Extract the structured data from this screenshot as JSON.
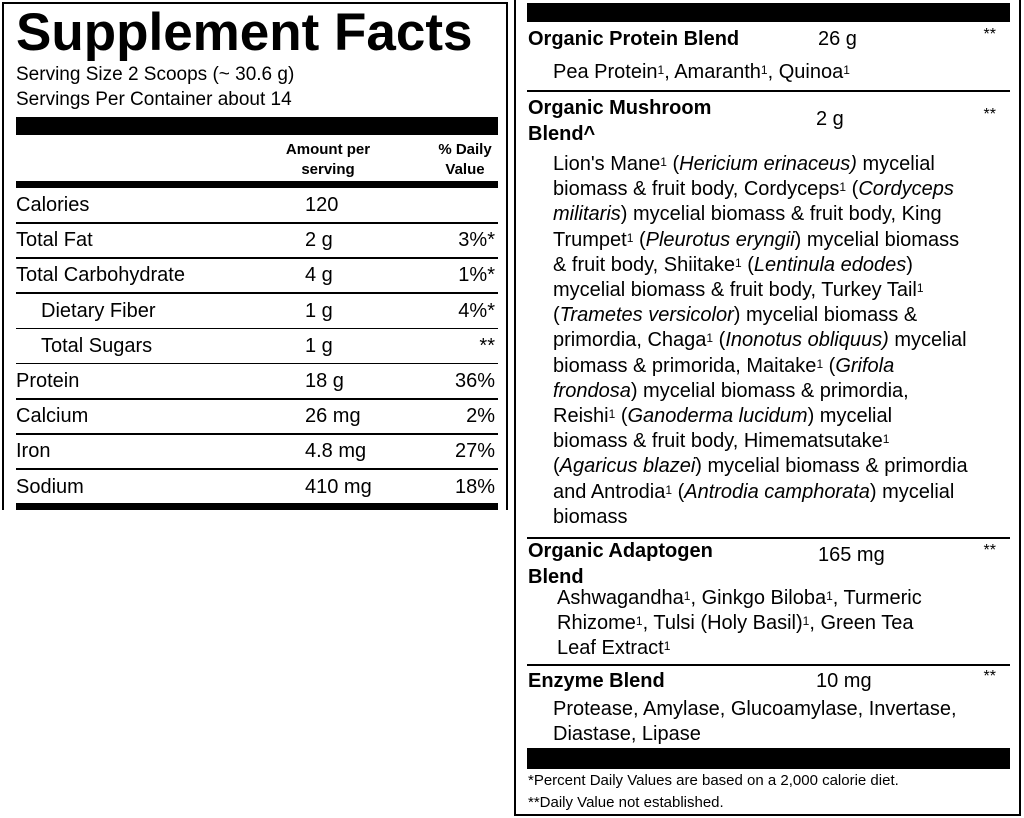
{
  "title": "Supplement Facts",
  "serving_size": "Serving Size 2 Scoops (~ 30.6 g)",
  "servings_per_container": "Servings Per Container about 14",
  "header": {
    "amount_line1": "Amount per",
    "amount_line2": "serving",
    "dv_line1": "% Daily",
    "dv_line2": "Value"
  },
  "nutrients": [
    {
      "name": "Calories",
      "amount": "120",
      "dv": "",
      "indent": false
    },
    {
      "name": "Total Fat",
      "amount": "2 g",
      "dv": "3%*",
      "indent": false
    },
    {
      "name": "Total Carbohydrate",
      "amount": "4 g",
      "dv": "1%*",
      "indent": false
    },
    {
      "name": "Dietary Fiber",
      "amount": "1 g",
      "dv": "4%*",
      "indent": true
    },
    {
      "name": "Total Sugars",
      "amount": "1 g",
      "dv": "**",
      "indent": true
    },
    {
      "name": "Protein",
      "amount": "18 g",
      "dv": "36%",
      "indent": false
    },
    {
      "name": "Calcium",
      "amount": "26 mg",
      "dv": "2%",
      "indent": false
    },
    {
      "name": "Iron",
      "amount": "4.8 mg",
      "dv": "27%",
      "indent": false
    },
    {
      "name": "Sodium",
      "amount": "410 mg",
      "dv": "18%",
      "indent": false
    }
  ],
  "blends": [
    {
      "name_lines": [
        "Organic Protein Blend"
      ],
      "amount": "26 g",
      "dv": "**",
      "lines": [
        [
          [
            "Pea Protein",
            ""
          ],
          [
            "1",
            "s"
          ],
          [
            ", Amaranth",
            ""
          ],
          [
            "1",
            "s"
          ],
          [
            ", Quinoa",
            ""
          ],
          [
            "1",
            "s"
          ]
        ]
      ]
    },
    {
      "name_lines": [
        "Organic Mushroom",
        "Blend^"
      ],
      "amount": "2 g",
      "dv": "**",
      "lines": [
        [
          [
            "Lion's Mane",
            ""
          ],
          [
            "1",
            "s"
          ],
          [
            " (",
            ""
          ],
          [
            "Hericium erinaceus)",
            "i"
          ],
          [
            " mycelial",
            ""
          ]
        ],
        [
          [
            "biomass & fruit body, Cordyceps",
            ""
          ],
          [
            "1",
            "s"
          ],
          [
            " (",
            ""
          ],
          [
            "Cordyceps",
            "i"
          ]
        ],
        [
          [
            "militaris",
            "i"
          ],
          [
            ") mycelial biomass & fruit body, King",
            ""
          ]
        ],
        [
          [
            "Trumpet",
            ""
          ],
          [
            "1",
            "s"
          ],
          [
            " (",
            ""
          ],
          [
            "Pleurotus eryngii",
            "i"
          ],
          [
            ") mycelial biomass",
            ""
          ]
        ],
        [
          [
            "& fruit body, Shiitake",
            ""
          ],
          [
            "1",
            "s"
          ],
          [
            " (",
            ""
          ],
          [
            "Lentinula edodes",
            "i"
          ],
          [
            ")",
            ""
          ]
        ],
        [
          [
            "mycelial biomass & fruit body, Turkey Tail",
            ""
          ],
          [
            "1",
            "s"
          ]
        ],
        [
          [
            "(",
            ""
          ],
          [
            "Trametes versicolor",
            "i"
          ],
          [
            ") mycelial biomass &",
            ""
          ]
        ],
        [
          [
            "primordia, Chaga",
            ""
          ],
          [
            "1",
            "s"
          ],
          [
            " (",
            ""
          ],
          [
            "Inonotus obliquus)",
            "i"
          ],
          [
            " mycelial",
            ""
          ]
        ],
        [
          [
            "biomass & primorida, Maitake",
            ""
          ],
          [
            "1",
            "s"
          ],
          [
            " (",
            ""
          ],
          [
            "Grifola",
            "i"
          ]
        ],
        [
          [
            "frondosa",
            "i"
          ],
          [
            ") mycelial biomass & primordia,",
            ""
          ]
        ],
        [
          [
            "Reishi",
            ""
          ],
          [
            "1",
            "s"
          ],
          [
            " (",
            ""
          ],
          [
            "Ganoderma lucidum",
            "i"
          ],
          [
            ") mycelial",
            ""
          ]
        ],
        [
          [
            "biomass & fruit body, Himematsutake",
            ""
          ],
          [
            "1",
            "s"
          ]
        ],
        [
          [
            "(",
            ""
          ],
          [
            "Agaricus blazei",
            "i"
          ],
          [
            ") mycelial biomass & primordia",
            ""
          ]
        ],
        [
          [
            "and Antrodia",
            ""
          ],
          [
            "1",
            "s"
          ],
          [
            " (",
            ""
          ],
          [
            "Antrodia camphorata",
            "i"
          ],
          [
            ") mycelial",
            ""
          ]
        ],
        [
          [
            "biomass",
            ""
          ]
        ]
      ]
    },
    {
      "name_lines": [
        "Organic Adaptogen",
        "Blend"
      ],
      "amount": "165 mg",
      "dv": "**",
      "lines": [
        [
          [
            "Ashwagandha",
            ""
          ],
          [
            "1",
            "s"
          ],
          [
            ", Ginkgo Biloba",
            ""
          ],
          [
            "1",
            "s"
          ],
          [
            ", Turmeric",
            ""
          ]
        ],
        [
          [
            "Rhizome",
            ""
          ],
          [
            "1",
            "s"
          ],
          [
            ", Tulsi (Holy Basil)",
            ""
          ],
          [
            "1",
            "s"
          ],
          [
            ", Green Tea",
            ""
          ]
        ],
        [
          [
            "Leaf Extract",
            ""
          ],
          [
            "1",
            "s"
          ]
        ]
      ]
    },
    {
      "name_lines": [
        "Enzyme Blend"
      ],
      "amount": "10 mg",
      "dv": "**",
      "lines": [
        [
          [
            "Protease, Amylase, Glucoamylase, Invertase,",
            ""
          ]
        ],
        [
          [
            "Diastase, Lipase",
            ""
          ]
        ]
      ]
    }
  ],
  "footnotes": [
    "*Percent Daily Values are based on a 2,000 calorie diet.",
    "**Daily Value not established."
  ]
}
